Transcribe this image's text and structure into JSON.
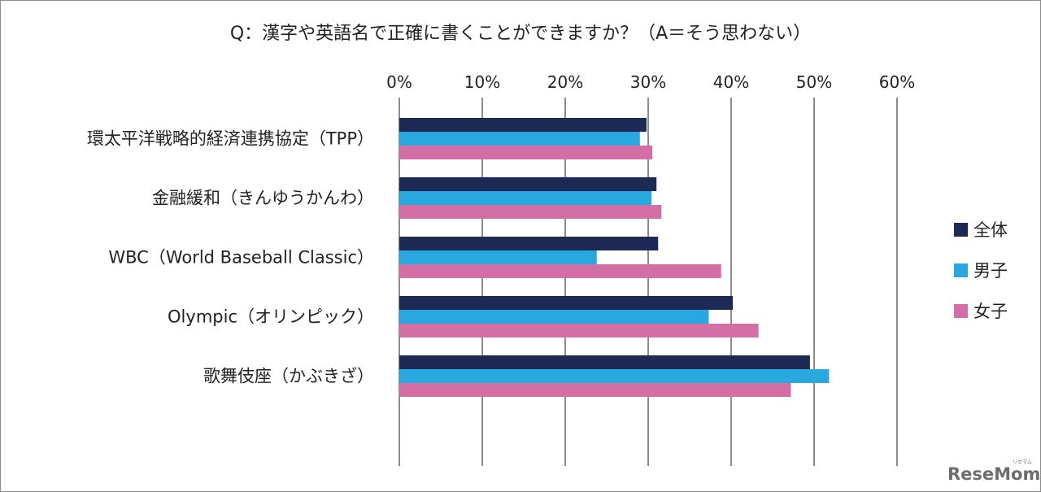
{
  "chart_data": {
    "type": "bar",
    "orientation": "horizontal",
    "title": "Q：漢字や英語名で正確に書くことができますか？（A＝そう思わない）",
    "xlim": [
      0,
      60
    ],
    "xticks": [
      "0%",
      "10%",
      "20%",
      "30%",
      "40%",
      "50%",
      "60%"
    ],
    "categories": [
      "環太平洋戦略的経済連携協定（TPP）",
      "金融緩和（きんゆうかんわ）",
      "WBC（World Baseball Classic）",
      "Olympic（オリンピック）",
      "歌舞伎座（かぶきざ）"
    ],
    "series": [
      {
        "name": "全体",
        "color": "#1c2a55",
        "values": [
          29.8,
          31.0,
          31.2,
          40.2,
          49.5
        ]
      },
      {
        "name": "男子",
        "color": "#29a8e0",
        "values": [
          29.0,
          30.4,
          23.8,
          37.3,
          51.8
        ]
      },
      {
        "name": "女子",
        "color": "#d46fa6",
        "values": [
          30.5,
          31.6,
          38.8,
          43.3,
          47.2
        ]
      }
    ],
    "legend_position": "right",
    "grid": true
  },
  "watermark": {
    "main": "ReseMom",
    "small": "リセマム"
  }
}
